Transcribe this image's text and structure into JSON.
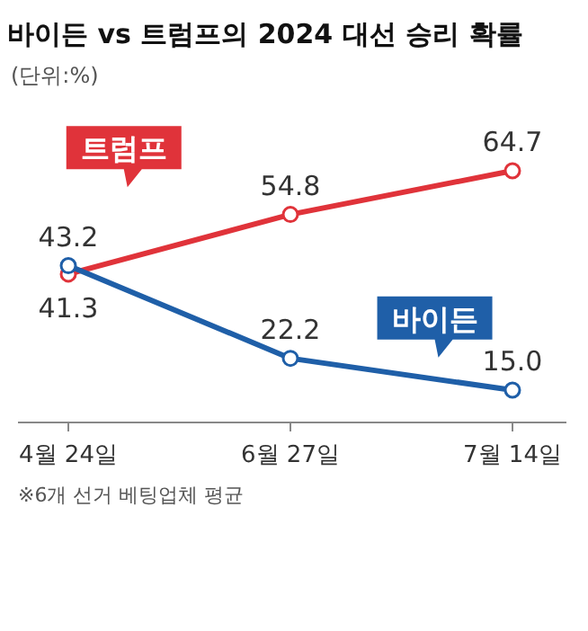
{
  "chart_data": {
    "type": "line",
    "title": "바이든 vs 트럼프의 2024 대선 승리 확률",
    "subtitle": "(단위:%)",
    "categories": [
      "4월 24일",
      "6월 27일",
      "7월 14일"
    ],
    "series": [
      {
        "name": "트럼프",
        "color": "#e0333a",
        "values": [
          41.3,
          54.8,
          64.7
        ],
        "value_labels": [
          "41.3",
          "54.8",
          "64.7"
        ]
      },
      {
        "name": "바이든",
        "color": "#1f5fa8",
        "values": [
          43.2,
          22.2,
          15.0
        ],
        "value_labels": [
          "43.2",
          "22.2",
          "15.0"
        ]
      }
    ],
    "marker": "circle",
    "line_style": "solid",
    "grid": false,
    "annotations": [
      "※6개 선거 베팅업체 평균"
    ]
  }
}
